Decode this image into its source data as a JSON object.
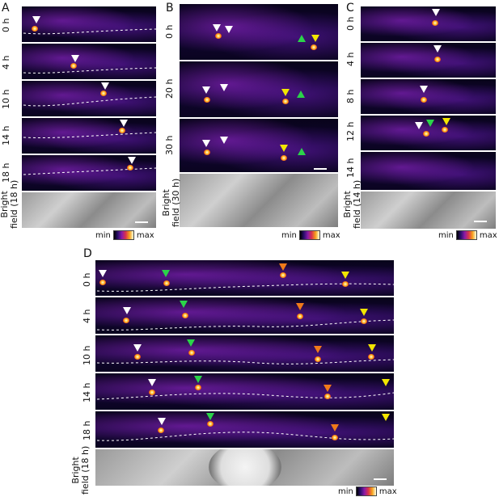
{
  "panels": {
    "A": {
      "letter": "A",
      "rows": [
        "0 h",
        "4 h",
        "10 h",
        "14 h",
        "18 h"
      ],
      "bright_label_1": "Bright",
      "bright_label_2": "field (18 h)",
      "cbar_min": "min",
      "cbar_max": "max"
    },
    "B": {
      "letter": "B",
      "rows": [
        "0 h",
        "20 h",
        "30 h"
      ],
      "bright_label_1": "Bright",
      "bright_label_2": "field (30 h)",
      "cbar_min": "min",
      "cbar_max": "max"
    },
    "C": {
      "letter": "C",
      "rows": [
        "0 h",
        "4 h",
        "8 h",
        "12 h",
        "14 h"
      ],
      "bright_label_1": "Bright",
      "bright_label_2": "field (14 h)",
      "cbar_min": "min",
      "cbar_max": "max"
    },
    "D": {
      "letter": "D",
      "rows": [
        "0 h",
        "4 h",
        "10 h",
        "14 h",
        "18 h"
      ],
      "bright_label_1": "Bright",
      "bright_label_2": "field (18 h)",
      "cbar_min": "min",
      "cbar_max": "max"
    }
  },
  "colors": {
    "arrow_white": "#ffffff",
    "arrow_green": "#2bd34a",
    "arrow_yellow": "#f2e600",
    "arrow_orange": "#f07a1a"
  }
}
